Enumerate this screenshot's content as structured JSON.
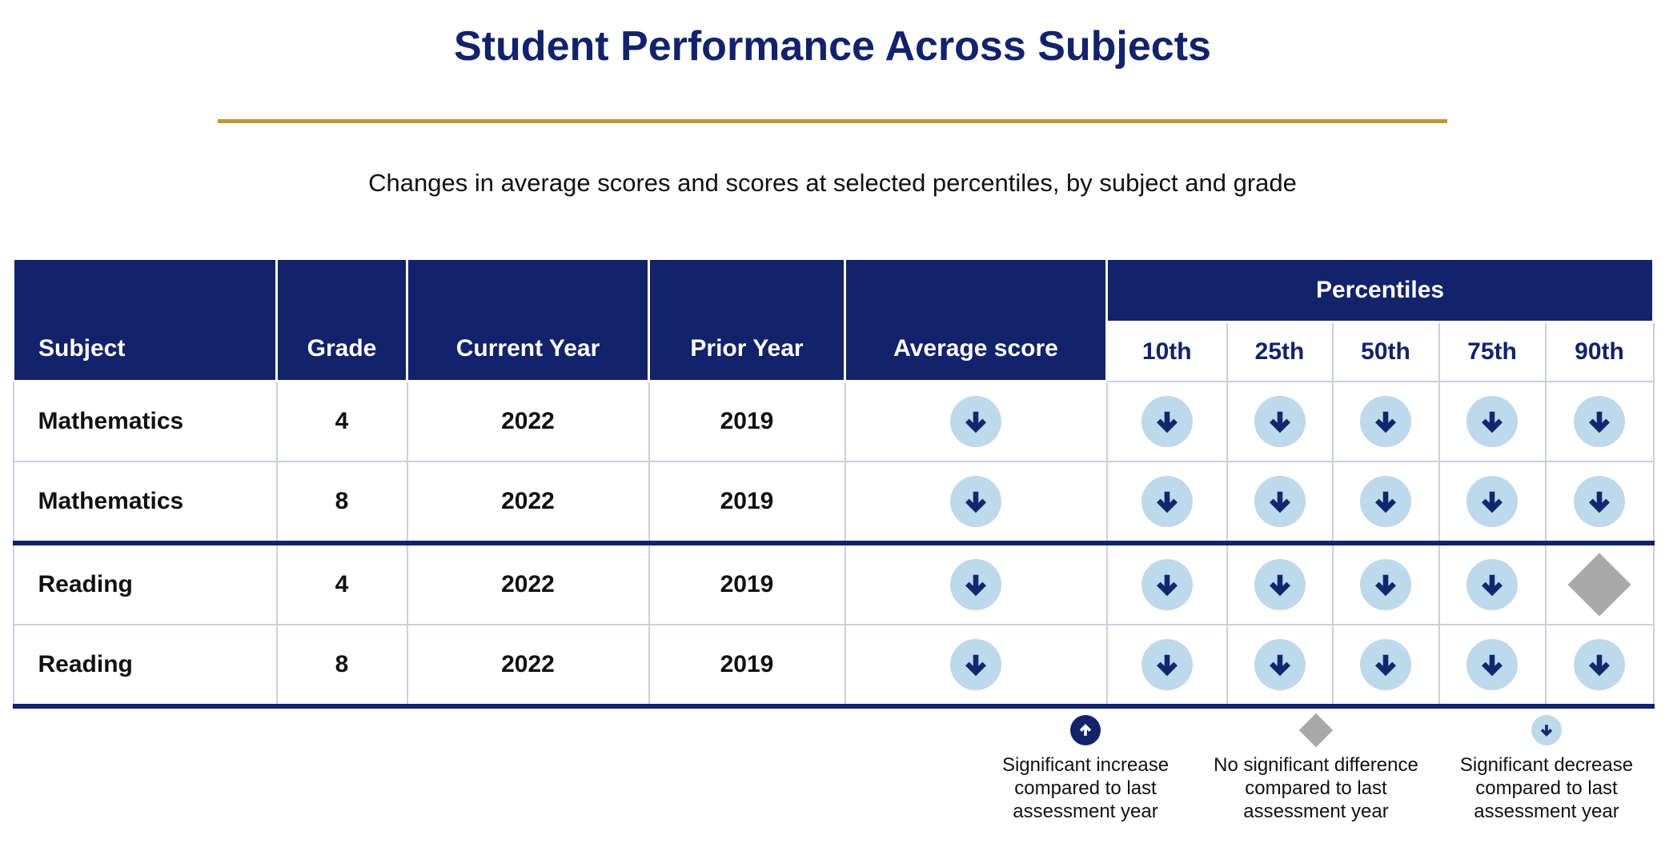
{
  "colors": {
    "navy": "#12226B",
    "light_blue": "#BED8EC",
    "gray": "#A9A9A9",
    "gold": "#BD9733",
    "border_gray": "#CDD0DC"
  },
  "chart_data": {
    "type": "table",
    "title": "Student Performance Across Subjects",
    "subtitle": "Changes in average scores and scores at selected percentiles, by subject and grade",
    "columns": [
      "Subject",
      "Grade",
      "Current Year",
      "Prior Year",
      "Average score"
    ],
    "percentiles_group_label": "Percentiles",
    "percentile_columns": [
      "10th",
      "25th",
      "50th",
      "75th",
      "90th"
    ],
    "rows": [
      {
        "subject": "Mathematics",
        "grade": "4",
        "current_year": "2022",
        "prior_year": "2019",
        "average": "decrease",
        "percentiles": [
          "decrease",
          "decrease",
          "decrease",
          "decrease",
          "decrease"
        ]
      },
      {
        "subject": "Mathematics",
        "grade": "8",
        "current_year": "2022",
        "prior_year": "2019",
        "average": "decrease",
        "percentiles": [
          "decrease",
          "decrease",
          "decrease",
          "decrease",
          "decrease"
        ]
      },
      {
        "subject": "Reading",
        "grade": "4",
        "current_year": "2022",
        "prior_year": "2019",
        "average": "decrease",
        "percentiles": [
          "decrease",
          "decrease",
          "decrease",
          "decrease",
          "no-change"
        ]
      },
      {
        "subject": "Reading",
        "grade": "8",
        "current_year": "2022",
        "prior_year": "2019",
        "average": "decrease",
        "percentiles": [
          "decrease",
          "decrease",
          "decrease",
          "decrease",
          "decrease"
        ]
      }
    ],
    "legend": [
      {
        "symbol": "increase",
        "lines": [
          "Significant increase",
          "compared to last",
          "assessment year"
        ]
      },
      {
        "symbol": "no-change",
        "lines": [
          "No significant difference",
          "compared to last",
          "assessment year"
        ]
      },
      {
        "symbol": "decrease",
        "lines": [
          "Significant decrease",
          "compared to last",
          "assessment year"
        ]
      }
    ]
  }
}
